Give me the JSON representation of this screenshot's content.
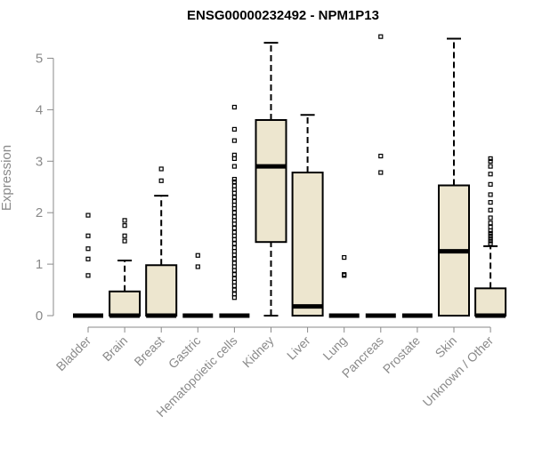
{
  "chart_data": {
    "type": "box",
    "title": "ENSG00000232492 - NPM1P13",
    "ylabel": "Expression",
    "xlabel": "",
    "ylim": [
      0,
      5.5
    ],
    "yticks": [
      "0",
      "1",
      "2",
      "3",
      "4",
      "5"
    ],
    "box_fill": "#ede6cf",
    "line_color": "#000000",
    "categories": [
      "Bladder",
      "Brain",
      "Breast",
      "Gastric",
      "Hematopoietic cells",
      "Kidney",
      "Liver",
      "Lung",
      "Pancreas",
      "Prostate",
      "Skin",
      "Unknown / Other"
    ],
    "boxes": [
      {
        "min": 0,
        "q1": 0,
        "median": 0,
        "q3": 0,
        "max": 0,
        "outliers": [
          0.78,
          1.1,
          1.3,
          1.55,
          1.95
        ]
      },
      {
        "min": 0,
        "q1": 0,
        "median": 0,
        "q3": 0.47,
        "max": 1.07,
        "outliers": [
          1.45,
          1.55,
          1.75,
          1.85
        ]
      },
      {
        "min": 0,
        "q1": 0,
        "median": 0,
        "q3": 0.98,
        "max": 2.33,
        "outliers": [
          2.62,
          2.85
        ]
      },
      {
        "min": 0,
        "q1": 0,
        "median": 0,
        "q3": 0,
        "max": 0,
        "outliers": [
          0.95,
          1.17
        ]
      },
      {
        "min": 0,
        "q1": 0,
        "median": 0,
        "q3": 0,
        "max": 0,
        "outliers": [
          0.35,
          0.42,
          0.5,
          0.58,
          0.65,
          0.72,
          0.8,
          0.88,
          0.95,
          1.02,
          1.1,
          1.18,
          1.25,
          1.32,
          1.4,
          1.48,
          1.55,
          1.62,
          1.7,
          1.78,
          1.85,
          1.92,
          2.0,
          2.08,
          2.15,
          2.22,
          2.3,
          2.38,
          2.45,
          2.52,
          2.6,
          2.65,
          2.9,
          3.05,
          3.12,
          3.4,
          3.62,
          4.05
        ]
      },
      {
        "min": 0,
        "q1": 1.43,
        "median": 2.9,
        "q3": 3.8,
        "max": 5.3,
        "outliers": []
      },
      {
        "min": 0,
        "q1": 0,
        "median": 0.18,
        "q3": 2.78,
        "max": 3.9,
        "outliers": []
      },
      {
        "min": 0,
        "q1": 0,
        "median": 0,
        "q3": 0,
        "max": 0,
        "outliers": [
          0.78,
          0.8,
          1.13
        ]
      },
      {
        "min": 0,
        "q1": 0,
        "median": 0,
        "q3": 0,
        "max": 0,
        "outliers": [
          2.78,
          3.1,
          5.42
        ]
      },
      {
        "min": 0,
        "q1": 0,
        "median": 0,
        "q3": 0,
        "max": 0,
        "outliers": []
      },
      {
        "min": 0,
        "q1": 0,
        "median": 1.25,
        "q3": 2.53,
        "max": 5.38,
        "outliers": []
      },
      {
        "min": 0,
        "q1": 0,
        "median": 0,
        "q3": 0.53,
        "max": 1.35,
        "outliers": [
          1.4,
          1.45,
          1.5,
          1.55,
          1.6,
          1.65,
          1.72,
          1.8,
          1.9,
          2.05,
          2.2,
          2.35,
          2.55,
          2.75,
          2.9,
          3.0,
          3.05
        ]
      }
    ]
  }
}
